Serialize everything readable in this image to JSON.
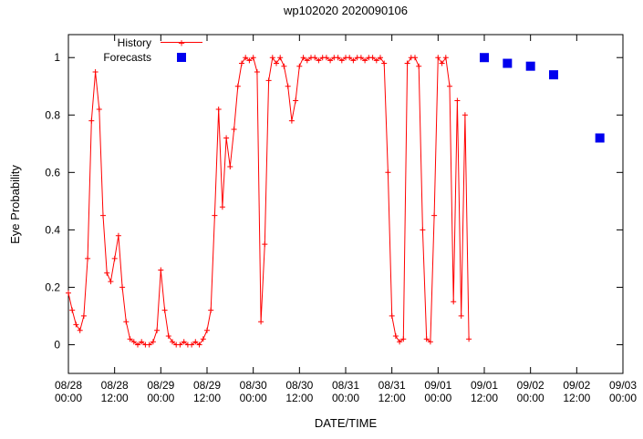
{
  "chart_data": {
    "type": "line",
    "title": "wp102020 2020090106",
    "xlabel": "DATE/TIME",
    "ylabel": "Eye Probability",
    "x_unit": "hours since 08/28 00:00",
    "xlim": [
      0,
      144
    ],
    "ylim": [
      -0.1,
      1.08
    ],
    "grid": false,
    "legend_position": "top-left-inside",
    "x_ticks": [
      {
        "hour": 0,
        "date": "08/28",
        "time": "00:00"
      },
      {
        "hour": 12,
        "date": "08/28",
        "time": "12:00"
      },
      {
        "hour": 24,
        "date": "08/29",
        "time": "00:00"
      },
      {
        "hour": 36,
        "date": "08/29",
        "time": "12:00"
      },
      {
        "hour": 48,
        "date": "08/30",
        "time": "00:00"
      },
      {
        "hour": 60,
        "date": "08/30",
        "time": "12:00"
      },
      {
        "hour": 72,
        "date": "08/31",
        "time": "00:00"
      },
      {
        "hour": 84,
        "date": "08/31",
        "time": "12:00"
      },
      {
        "hour": 96,
        "date": "09/01",
        "time": "00:00"
      },
      {
        "hour": 108,
        "date": "09/01",
        "time": "12:00"
      },
      {
        "hour": 120,
        "date": "09/02",
        "time": "00:00"
      },
      {
        "hour": 132,
        "date": "09/02",
        "time": "12:00"
      },
      {
        "hour": 144,
        "date": "09/03",
        "time": "00:00"
      }
    ],
    "y_ticks": [
      0,
      0.2,
      0.4,
      0.6,
      0.8,
      1
    ],
    "y_tick_labels": [
      "0",
      "0.2",
      "0.4",
      "0.6",
      "0.8",
      "1"
    ],
    "series": [
      {
        "name": "History",
        "style": "line-with-plus-markers",
        "color": "#ff0000",
        "x": [
          0,
          1,
          2,
          3,
          4,
          5,
          6,
          7,
          8,
          9,
          10,
          11,
          12,
          13,
          14,
          15,
          16,
          17,
          18,
          19,
          20,
          21,
          22,
          23,
          24,
          25,
          26,
          27,
          28,
          29,
          30,
          31,
          32,
          33,
          34,
          35,
          36,
          37,
          38,
          39,
          40,
          41,
          42,
          43,
          44,
          45,
          46,
          47,
          48,
          49,
          50,
          51,
          52,
          53,
          54,
          55,
          56,
          57,
          58,
          59,
          60,
          61,
          62,
          63,
          64,
          65,
          66,
          67,
          68,
          69,
          70,
          71,
          72,
          73,
          74,
          75,
          76,
          77,
          78,
          79,
          80,
          81,
          82,
          83,
          84,
          85,
          86,
          87,
          88,
          89,
          90,
          91,
          92,
          93,
          94,
          95,
          96,
          97,
          98,
          99,
          100,
          101,
          102,
          103,
          104
        ],
        "values": [
          0.18,
          0.12,
          0.07,
          0.05,
          0.1,
          0.3,
          0.78,
          0.95,
          0.82,
          0.45,
          0.25,
          0.22,
          0.3,
          0.38,
          0.2,
          0.08,
          0.02,
          0.01,
          0.0,
          0.01,
          0.0,
          0.0,
          0.01,
          0.05,
          0.26,
          0.12,
          0.03,
          0.01,
          0.0,
          0.0,
          0.01,
          0.0,
          0.0,
          0.01,
          0.0,
          0.02,
          0.05,
          0.12,
          0.45,
          0.82,
          0.48,
          0.72,
          0.62,
          0.75,
          0.9,
          0.98,
          1.0,
          0.99,
          1.0,
          0.95,
          0.08,
          0.35,
          0.92,
          1.0,
          0.98,
          1.0,
          0.97,
          0.9,
          0.78,
          0.85,
          0.97,
          1.0,
          0.99,
          1.0,
          1.0,
          0.99,
          1.0,
          1.0,
          0.99,
          1.0,
          1.0,
          0.99,
          1.0,
          1.0,
          0.99,
          1.0,
          1.0,
          0.99,
          1.0,
          1.0,
          0.99,
          1.0,
          0.98,
          0.6,
          0.1,
          0.03,
          0.01,
          0.02,
          0.98,
          1.0,
          1.0,
          0.97,
          0.4,
          0.02,
          0.01,
          0.45,
          1.0,
          0.98,
          1.0,
          0.9,
          0.15,
          0.85,
          0.1,
          0.8,
          0.02
        ]
      },
      {
        "name": "Forecasts",
        "style": "filled-squares",
        "color": "#0000ee",
        "x": [
          108,
          114,
          120,
          126,
          138
        ],
        "values": [
          1.0,
          0.98,
          0.97,
          0.94,
          0.72
        ]
      }
    ]
  }
}
